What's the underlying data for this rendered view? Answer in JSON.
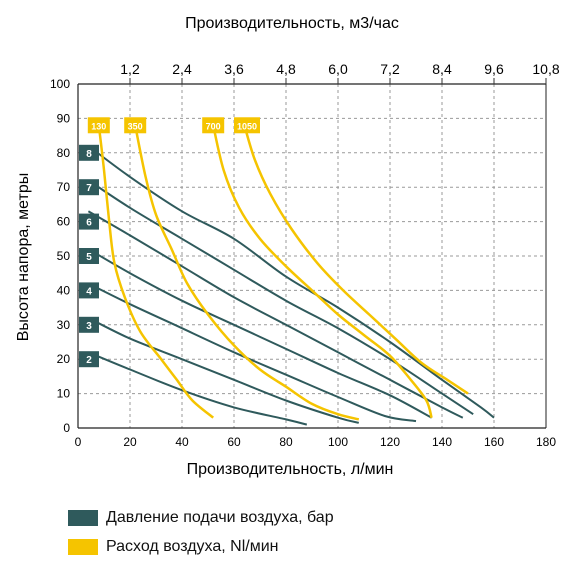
{
  "chart_data": {
    "type": "line",
    "title": "",
    "xlabel": "Производительность, л/мин",
    "ylabel": "Высота напора, метры",
    "top_axis_label": "Производительность, м3/час",
    "xlim": [
      0,
      180
    ],
    "ylim": [
      0,
      100
    ],
    "x_ticks": [
      "0",
      "20",
      "40",
      "60",
      "80",
      "100",
      "120",
      "140",
      "160",
      "180"
    ],
    "y_ticks": [
      "0",
      "10",
      "20",
      "30",
      "40",
      "50",
      "60",
      "70",
      "80",
      "90",
      "100"
    ],
    "top_ticks": [
      "1,2",
      "2,4",
      "3,6",
      "4,8",
      "6,0",
      "7,2",
      "8,4",
      "9,6",
      "10,8"
    ],
    "grid": true,
    "colors": {
      "pressure": "#2f5a5c",
      "air": "#f5c400"
    },
    "legend": [
      {
        "label": "Давление подачи воздуха, бар",
        "color": "#2f5a5c"
      },
      {
        "label": "Расход воздуха, Nl/мин",
        "color": "#f5c400"
      }
    ],
    "pressure_series": [
      {
        "name": "2",
        "points": [
          [
            4,
            22
          ],
          [
            20,
            17
          ],
          [
            40,
            11
          ],
          [
            60,
            6
          ],
          [
            80,
            2.5
          ],
          [
            88,
            1
          ]
        ]
      },
      {
        "name": "3",
        "points": [
          [
            4,
            32
          ],
          [
            20,
            26
          ],
          [
            40,
            20
          ],
          [
            60,
            14
          ],
          [
            80,
            8
          ],
          [
            100,
            3
          ],
          [
            108,
            1.5
          ]
        ]
      },
      {
        "name": "4",
        "points": [
          [
            4,
            42
          ],
          [
            20,
            36
          ],
          [
            40,
            29
          ],
          [
            60,
            22
          ],
          [
            80,
            15.5
          ],
          [
            100,
            9
          ],
          [
            118,
            3.5
          ],
          [
            130,
            2
          ]
        ]
      },
      {
        "name": "5",
        "points": [
          [
            4,
            52
          ],
          [
            20,
            45
          ],
          [
            40,
            37
          ],
          [
            60,
            30
          ],
          [
            80,
            23
          ],
          [
            100,
            16
          ],
          [
            120,
            9.5
          ],
          [
            136,
            3
          ]
        ]
      },
      {
        "name": "6",
        "points": [
          [
            4,
            63
          ],
          [
            20,
            56
          ],
          [
            40,
            47
          ],
          [
            60,
            38
          ],
          [
            80,
            30
          ],
          [
            100,
            22
          ],
          [
            120,
            14
          ],
          [
            140,
            6
          ],
          [
            148,
            3
          ]
        ]
      },
      {
        "name": "7",
        "points": [
          [
            4,
            72
          ],
          [
            20,
            64
          ],
          [
            40,
            55
          ],
          [
            60,
            46
          ],
          [
            80,
            37
          ],
          [
            100,
            29
          ],
          [
            120,
            20
          ],
          [
            140,
            10
          ],
          [
            152,
            4
          ]
        ]
      },
      {
        "name": "8",
        "points": [
          [
            4,
            82
          ],
          [
            20,
            73
          ],
          [
            40,
            63
          ],
          [
            60,
            55
          ],
          [
            80,
            44
          ],
          [
            100,
            35
          ],
          [
            120,
            25
          ],
          [
            140,
            14
          ],
          [
            155,
            6
          ],
          [
            160,
            3
          ]
        ]
      }
    ],
    "air_series": [
      {
        "name": "130",
        "points": [
          [
            8,
            88
          ],
          [
            10,
            75
          ],
          [
            12,
            60
          ],
          [
            14,
            48
          ],
          [
            18,
            38
          ],
          [
            24,
            28
          ],
          [
            32,
            20
          ],
          [
            38,
            14
          ],
          [
            44,
            8
          ],
          [
            52,
            3
          ]
        ]
      },
      {
        "name": "350",
        "points": [
          [
            22,
            88
          ],
          [
            26,
            73
          ],
          [
            30,
            62
          ],
          [
            36,
            52
          ],
          [
            42,
            42
          ],
          [
            50,
            33
          ],
          [
            60,
            24
          ],
          [
            70,
            17
          ],
          [
            80,
            12
          ],
          [
            90,
            7
          ],
          [
            100,
            4
          ],
          [
            108,
            2.5
          ]
        ]
      },
      {
        "name": "700",
        "points": [
          [
            52,
            88
          ],
          [
            56,
            75
          ],
          [
            62,
            64
          ],
          [
            70,
            55
          ],
          [
            80,
            47
          ],
          [
            90,
            40
          ],
          [
            100,
            33
          ],
          [
            110,
            27
          ],
          [
            120,
            21
          ],
          [
            128,
            14
          ],
          [
            134,
            8
          ],
          [
            136,
            3
          ]
        ]
      },
      {
        "name": "1050",
        "points": [
          [
            64,
            88
          ],
          [
            68,
            78
          ],
          [
            74,
            68
          ],
          [
            82,
            58
          ],
          [
            92,
            48
          ],
          [
            102,
            40
          ],
          [
            112,
            33
          ],
          [
            122,
            26
          ],
          [
            132,
            19
          ],
          [
            142,
            14
          ],
          [
            150,
            10
          ]
        ]
      }
    ],
    "badges_pressure": [
      {
        "label": "8",
        "y": 80
      },
      {
        "label": "7",
        "y": 70
      },
      {
        "label": "6",
        "y": 60
      },
      {
        "label": "5",
        "y": 50
      },
      {
        "label": "4",
        "y": 40
      },
      {
        "label": "3",
        "y": 30
      },
      {
        "label": "2",
        "y": 20
      }
    ],
    "badges_air": [
      {
        "label": "130",
        "x": 8
      },
      {
        "label": "350",
        "x": 22
      },
      {
        "label": "700",
        "x": 52
      },
      {
        "label": "1050",
        "x": 65
      }
    ]
  }
}
